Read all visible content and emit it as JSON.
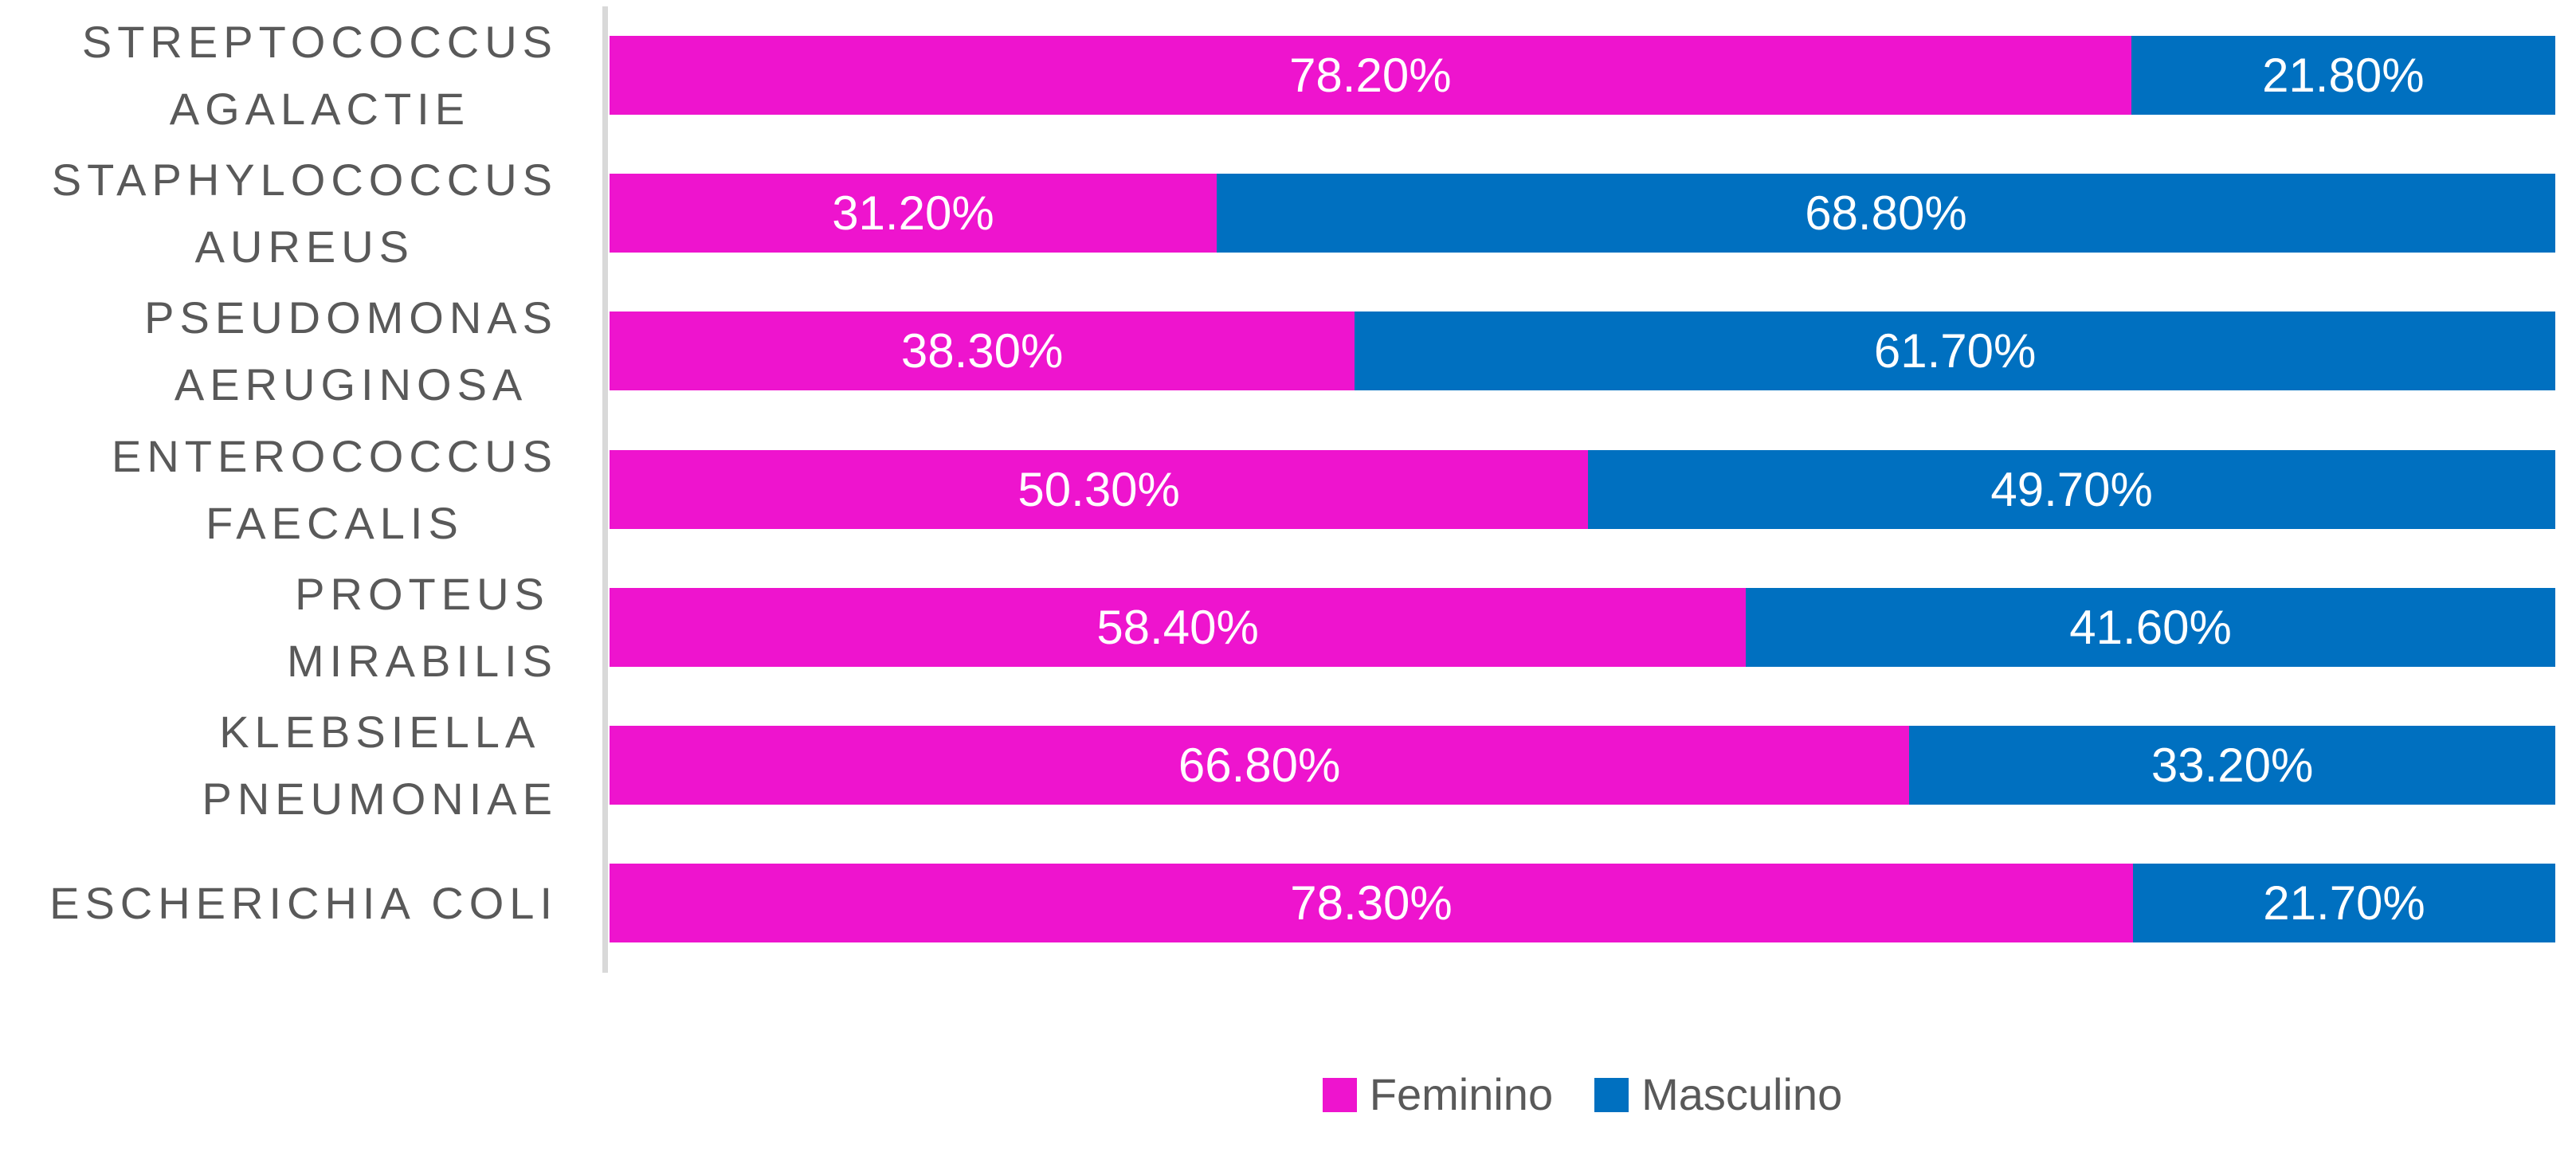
{
  "chart_data": {
    "type": "bar",
    "orientation": "horizontal",
    "stacked": true,
    "percent_stacked": true,
    "title": "",
    "xlabel": "",
    "ylabel": "",
    "xlim": [
      0,
      100
    ],
    "grid": false,
    "legend_position": "bottom",
    "axis_line_color": "#d9d9d9",
    "category_label_color": "#595959",
    "data_label_color": "#ffffff",
    "categories": [
      {
        "name": "STREPTOCOCCUS AGALACTIE",
        "lines": [
          "STREPTOCOCCUS",
          "AGALACTIE"
        ]
      },
      {
        "name": "STAPHYLOCOCCUS AUREUS",
        "lines": [
          "STAPHYLOCOCCUS",
          "AUREUS"
        ]
      },
      {
        "name": "PSEUDOMONAS AERUGINOSA",
        "lines": [
          "PSEUDOMONAS",
          "AERUGINOSA"
        ]
      },
      {
        "name": "ENTEROCOCCUS FAECALIS",
        "lines": [
          "ENTEROCOCCUS",
          "FAECALIS"
        ]
      },
      {
        "name": "PROTEUS MIRABILIS",
        "lines": [
          "PROTEUS",
          "MIRABILIS"
        ]
      },
      {
        "name": "KLEBSIELLA PNEUMONIAE",
        "lines": [
          "KLEBSIELLA",
          "PNEUMONIAE"
        ]
      },
      {
        "name": "ESCHERICHIA COLI",
        "lines": [
          "ESCHERICHIA COLI"
        ]
      }
    ],
    "series": [
      {
        "name": "Feminino",
        "color": "#ee14ce",
        "values": [
          78.2,
          31.2,
          38.3,
          50.3,
          58.4,
          66.8,
          78.3
        ],
        "labels": [
          "78.20%",
          "31.20%",
          "38.30%",
          "50.30%",
          "58.40%",
          "66.80%",
          "78.30%"
        ]
      },
      {
        "name": "Masculino",
        "color": "#0070c0",
        "values": [
          21.8,
          68.8,
          61.7,
          49.7,
          41.6,
          33.2,
          21.7
        ],
        "labels": [
          "21.80%",
          "68.80%",
          "61.70%",
          "49.70%",
          "41.60%",
          "33.20%",
          "21.70%"
        ]
      }
    ]
  },
  "legend": {
    "items": [
      {
        "label": "Feminino",
        "color": "#ee14ce"
      },
      {
        "label": "Masculino",
        "color": "#0070c0"
      }
    ]
  }
}
